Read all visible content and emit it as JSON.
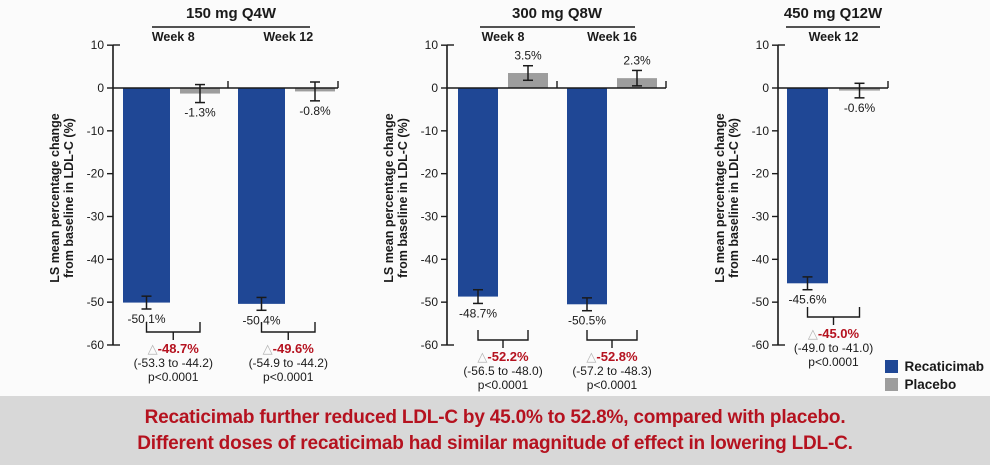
{
  "colors": {
    "recaticimab_blue": "#1f4795",
    "placebo_gray": "#9d9d9d",
    "accent_red": "#b5121f",
    "banner_bg": "#d8d8d8",
    "axis_black": "#1a1a1a",
    "triangle_gray": "#b3b3b3"
  },
  "legend": {
    "items": [
      {
        "label": "Recaticimab",
        "color": "#1f4795"
      },
      {
        "label": "Placebo",
        "color": "#9d9d9d"
      }
    ]
  },
  "banner": {
    "line1": "Recaticimab further reduced LDL-C by 45.0% to 52.8%, compared with placebo.",
    "line2": "Different doses of recaticimab had similar magnitude of effect in lowering LDL-C.",
    "text_color": "#b5121f",
    "bg_color": "#d8d8d8"
  },
  "chart_data": {
    "type": "bar",
    "ylabel_line1": "LS mean percentage change",
    "ylabel_line2": "from baseline in LDL-C (%)",
    "yticks": [
      10,
      0,
      -10,
      -20,
      -30,
      -40,
      -50,
      -60
    ],
    "ylim": [
      -60,
      10
    ],
    "series_names": [
      "Recaticimab",
      "Placebo"
    ],
    "panels": [
      {
        "title": "150 mg Q4W",
        "groups": [
          {
            "week": "Week 8",
            "recaticimab": {
              "value": -50.1,
              "label": "-50.1%",
              "err": 1.5
            },
            "placebo": {
              "value": -1.3,
              "label": "-1.3%",
              "err": 2.1
            },
            "difference": {
              "delta": "-48.7%",
              "ci": "(-53.3 to -44.2)",
              "p": "p<0.0001"
            }
          },
          {
            "week": "Week 12",
            "recaticimab": {
              "value": -50.4,
              "label": "-50.4%",
              "err": 1.5
            },
            "placebo": {
              "value": -0.8,
              "label": "-0.8%",
              "err": 2.2
            },
            "difference": {
              "delta": "-49.6%",
              "ci": "(-54.9 to -44.2)",
              "p": "p<0.0001"
            }
          }
        ]
      },
      {
        "title": "300 mg Q8W",
        "groups": [
          {
            "week": "Week 8",
            "recaticimab": {
              "value": -48.7,
              "label": "-48.7%",
              "err": 1.6
            },
            "placebo": {
              "value": 3.5,
              "label": "3.5%",
              "err": 1.7
            },
            "difference": {
              "delta": "-52.2%",
              "ci": "(-56.5 to -48.0)",
              "p": "p<0.0001"
            }
          },
          {
            "week": "Week 16",
            "recaticimab": {
              "value": -50.5,
              "label": "-50.5%",
              "err": 1.5
            },
            "placebo": {
              "value": 2.3,
              "label": "2.3%",
              "err": 1.8
            },
            "difference": {
              "delta": "-52.8%",
              "ci": "(-57.2 to -48.3)",
              "p": "p<0.0001"
            }
          }
        ]
      },
      {
        "title": "450 mg Q12W",
        "groups": [
          {
            "week": "Week 12",
            "recaticimab": {
              "value": -45.6,
              "label": "-45.6%",
              "err": 1.5
            },
            "placebo": {
              "value": -0.6,
              "label": "-0.6%",
              "err": 1.7
            },
            "difference": {
              "delta": "-45.0%",
              "ci": "(-49.0 to -41.0)",
              "p": "p<0.0001"
            }
          }
        ]
      }
    ]
  }
}
